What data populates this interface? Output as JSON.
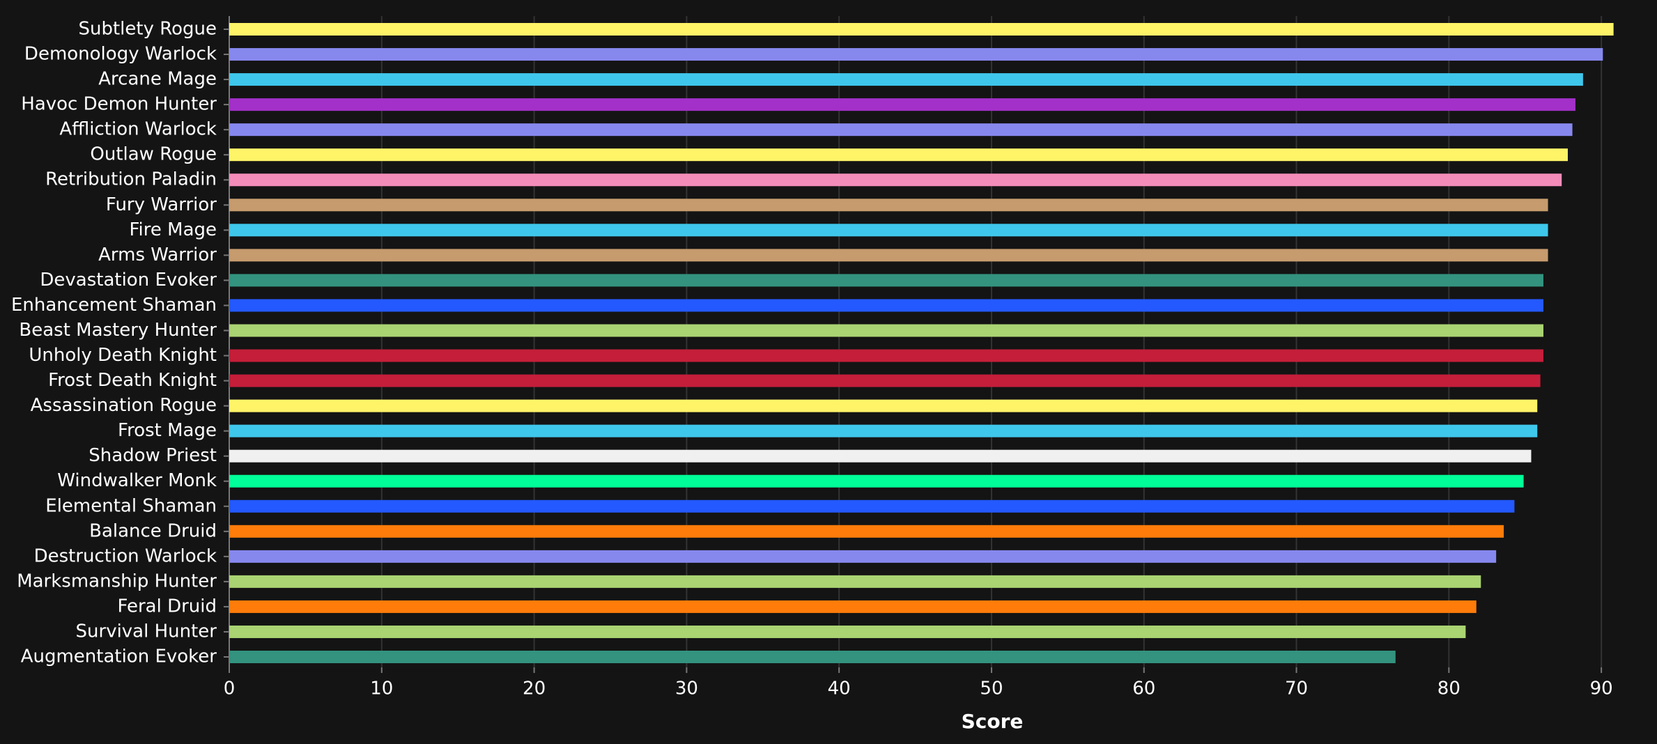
{
  "chart_data": {
    "type": "hbar",
    "x_label": "Score",
    "categories": [
      "Subtlety Rogue",
      "Demonology Warlock",
      "Arcane Mage",
      "Havoc Demon Hunter",
      "Affliction Warlock",
      "Outlaw Rogue",
      "Retribution Paladin",
      "Fury Warrior",
      "Fire Mage",
      "Arms Warrior",
      "Devastation Evoker",
      "Enhancement Shaman",
      "Beast Mastery Hunter",
      "Unholy Death Knight",
      "Frost Death Knight",
      "Assassination Rogue",
      "Frost Mage",
      "Shadow Priest",
      "Windwalker Monk",
      "Elemental Shaman",
      "Balance Druid",
      "Destruction Warlock",
      "Marksmanship Hunter",
      "Feral Druid",
      "Survival Hunter",
      "Augmentation Evoker"
    ],
    "values": [
      90.8,
      90.1,
      88.8,
      88.3,
      88.1,
      87.8,
      87.4,
      86.5,
      86.5,
      86.5,
      86.2,
      86.2,
      86.2,
      86.2,
      86.0,
      85.8,
      85.8,
      85.4,
      84.9,
      84.3,
      83.6,
      83.1,
      82.1,
      81.8,
      81.1,
      76.5
    ],
    "colors": [
      "#fff468",
      "#8788ee",
      "#3fc7eb",
      "#a330c9",
      "#8788ee",
      "#fff468",
      "#f48cba",
      "#c69b6d",
      "#3fc7eb",
      "#c69b6d",
      "#33937f",
      "#2459ff",
      "#aad372",
      "#c41e3a",
      "#c41e3a",
      "#fff468",
      "#3fc7eb",
      "#f0f0f0",
      "#00ff98",
      "#2459ff",
      "#ff7c0a",
      "#8788ee",
      "#aad372",
      "#ff7c0a",
      "#aad372",
      "#33937f"
    ],
    "xlim": [
      0,
      91
    ],
    "xticks": [
      0,
      10,
      20,
      30,
      40,
      50,
      60,
      70,
      80,
      90
    ],
    "grid": true
  }
}
